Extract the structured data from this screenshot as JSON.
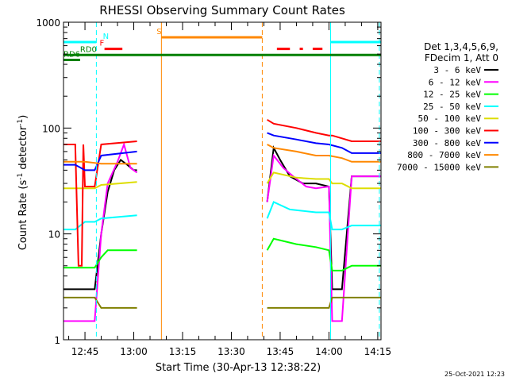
{
  "chart_data": {
    "type": "line",
    "title": "RHESSI Observing Summary Count Rates",
    "xlabel": "Start Time (30-Apr-13 12:38:22)",
    "ylabel_parts": {
      "base": "Count Rate (s",
      "sup": "-1",
      "tail": " detector",
      "sup2": "-1",
      "close": ")"
    },
    "yscale": "log",
    "ylim": [
      1,
      1000
    ],
    "xlim_minutes": [
      38.4,
      136.0
    ],
    "y_ticks": [
      {
        "value": 1,
        "label": "1"
      },
      {
        "value": 10,
        "label": "10"
      },
      {
        "value": 100,
        "label": "100"
      },
      {
        "value": 1000,
        "label": "1000"
      }
    ],
    "x_ticks": [
      {
        "minute": 45,
        "label": "12:45"
      },
      {
        "minute": 60,
        "label": "13:00"
      },
      {
        "minute": 75,
        "label": "13:15"
      },
      {
        "minute": 90,
        "label": "13:30"
      },
      {
        "minute": 105,
        "label": "13:45"
      },
      {
        "minute": 120,
        "label": "14:00"
      },
      {
        "minute": 135,
        "label": "14:15"
      }
    ],
    "legend_header": [
      "Det 1,3,4,5,6,9,",
      "FDecim 1, Att 0"
    ],
    "series": [
      {
        "name": "3 - 6 keV",
        "color": "#000000",
        "segments": [
          [
            [
              38.4,
              3
            ],
            [
              46,
              3
            ],
            [
              48,
              3
            ],
            [
              50,
              10
            ],
            [
              52,
              25
            ],
            [
              54,
              40
            ],
            [
              56,
              50
            ],
            [
              58,
              45
            ],
            [
              60,
              40
            ],
            [
              61,
              40
            ]
          ],
          [
            [
              101,
              20
            ],
            [
              103,
              65
            ],
            [
              105,
              50
            ],
            [
              108,
              35
            ],
            [
              112,
              30
            ],
            [
              116,
              30
            ],
            [
              120,
              28
            ],
            [
              121,
              3
            ],
            [
              124,
              3
            ],
            [
              127,
              35
            ],
            [
              136,
              35
            ]
          ]
        ]
      },
      {
        "name": "6 - 12 keV",
        "color": "#ff00ff",
        "segments": [
          [
            [
              38.4,
              1.5
            ],
            [
              48,
              1.5
            ],
            [
              50,
              10
            ],
            [
              52,
              30
            ],
            [
              55,
              48
            ],
            [
              57,
              70
            ],
            [
              59,
              42
            ],
            [
              61,
              38
            ]
          ],
          [
            [
              101,
              20
            ],
            [
              103,
              55
            ],
            [
              106,
              42
            ],
            [
              109,
              35
            ],
            [
              113,
              28
            ],
            [
              116,
              27
            ],
            [
              120,
              28
            ],
            [
              121,
              1.5
            ],
            [
              124,
              1.5
            ],
            [
              127,
              35
            ],
            [
              136,
              35
            ]
          ]
        ]
      },
      {
        "name": "12 - 25 keV",
        "color": "#00ff00",
        "segments": [
          [
            [
              38.4,
              4.8
            ],
            [
              48,
              4.8
            ],
            [
              50,
              6
            ],
            [
              52,
              7
            ],
            [
              61,
              7
            ]
          ],
          [
            [
              101,
              7
            ],
            [
              103,
              9
            ],
            [
              110,
              8
            ],
            [
              116,
              7.5
            ],
            [
              120,
              7
            ],
            [
              121,
              4.5
            ],
            [
              124,
              4.5
            ],
            [
              127,
              5
            ],
            [
              136,
              5
            ]
          ]
        ]
      },
      {
        "name": "25 - 50 keV",
        "color": "#00ffff",
        "segments": [
          [
            [
              38.4,
              11
            ],
            [
              42,
              11
            ],
            [
              45,
              13
            ],
            [
              48,
              13
            ],
            [
              50,
              14
            ],
            [
              61,
              15
            ]
          ],
          [
            [
              101,
              14
            ],
            [
              103,
              20
            ],
            [
              108,
              17
            ],
            [
              116,
              16
            ],
            [
              120,
              16
            ],
            [
              121,
              11
            ],
            [
              124,
              11
            ],
            [
              127,
              12
            ],
            [
              136,
              12
            ]
          ]
        ]
      },
      {
        "name": "50 - 100 keV",
        "color": "#dddd00",
        "segments": [
          [
            [
              38.4,
              27
            ],
            [
              42,
              27
            ],
            [
              45,
              27
            ],
            [
              48,
              27
            ],
            [
              50,
              29
            ],
            [
              61,
              31
            ]
          ],
          [
            [
              101,
              30
            ],
            [
              103,
              38
            ],
            [
              110,
              34
            ],
            [
              116,
              33
            ],
            [
              120,
              33
            ],
            [
              121,
              30
            ],
            [
              124,
              30
            ],
            [
              127,
              27
            ],
            [
              136,
              27
            ]
          ]
        ]
      },
      {
        "name": "100 - 300 keV",
        "color": "#ff0000",
        "segments": [
          [
            [
              38.4,
              70
            ],
            [
              42,
              70
            ],
            [
              43,
              5
            ],
            [
              44,
              5
            ],
            [
              44.5,
              70
            ],
            [
              45,
              28
            ],
            [
              48,
              28
            ],
            [
              50,
              70
            ],
            [
              61,
              75
            ]
          ],
          [
            [
              101,
              120
            ],
            [
              103,
              110
            ],
            [
              110,
              100
            ],
            [
              116,
              90
            ],
            [
              120,
              85
            ],
            [
              121,
              85
            ],
            [
              124,
              80
            ],
            [
              127,
              75
            ],
            [
              136,
              75
            ]
          ]
        ]
      },
      {
        "name": "300 - 800 keV",
        "color": "#0000ff",
        "segments": [
          [
            [
              38.4,
              45
            ],
            [
              42,
              45
            ],
            [
              45,
              40
            ],
            [
              48,
              40
            ],
            [
              50,
              55
            ],
            [
              61,
              60
            ]
          ],
          [
            [
              101,
              90
            ],
            [
              103,
              85
            ],
            [
              110,
              78
            ],
            [
              116,
              72
            ],
            [
              120,
              70
            ],
            [
              124,
              65
            ],
            [
              127,
              58
            ],
            [
              136,
              58
            ]
          ]
        ]
      },
      {
        "name": "800 - 7000 keV",
        "color": "#ff8800",
        "segments": [
          [
            [
              38.4,
              48
            ],
            [
              45,
              48
            ],
            [
              50,
              46
            ],
            [
              61,
              46
            ]
          ],
          [
            [
              101,
              70
            ],
            [
              103,
              65
            ],
            [
              110,
              60
            ],
            [
              116,
              55
            ],
            [
              120,
              55
            ],
            [
              124,
              52
            ],
            [
              127,
              48
            ],
            [
              136,
              48
            ]
          ]
        ]
      },
      {
        "name": "7000 - 15000 keV",
        "color": "#808000",
        "segments": [
          [
            [
              38.4,
              2.5
            ],
            [
              48,
              2.5
            ],
            [
              50,
              2
            ],
            [
              61,
              2
            ]
          ],
          [
            [
              101,
              2
            ],
            [
              116,
              2
            ],
            [
              120,
              2
            ],
            [
              121,
              2.5
            ],
            [
              124,
              2.5
            ],
            [
              127,
              2.5
            ],
            [
              136,
              2.5
            ]
          ]
        ]
      }
    ],
    "flags": [
      {
        "label": "",
        "color": "#00ffff",
        "y": 650,
        "x": [
          38.4,
          48.5
        ]
      },
      {
        "label": "N",
        "color": "#00ffff",
        "y": 650,
        "x": [
          48.5,
          48.5
        ],
        "label_minute": 50.5
      },
      {
        "label": "F",
        "color": "#ff0000",
        "y": 560,
        "x": [
          51,
          56.5
        ],
        "label_minute": 49.5
      },
      {
        "label": "S",
        "color": "#ff8800",
        "y": 720,
        "x": [
          68.5,
          99.5
        ],
        "label_minute": 67
      },
      {
        "label": "",
        "color": "#ff0000",
        "y": 560,
        "x": [
          104,
          108
        ]
      },
      {
        "label": "",
        "color": "#ff0000",
        "y": 560,
        "x": [
          111,
          112
        ]
      },
      {
        "label": "",
        "color": "#ff0000",
        "y": 560,
        "x": [
          115,
          118
        ]
      },
      {
        "label": "RD0",
        "color": "#008000",
        "y": 490,
        "x": [
          38.4,
          136
        ],
        "label_minute": 43.5
      },
      {
        "label": "RD6",
        "color": "#008000",
        "y": 440,
        "x": [
          38.4,
          43.5
        ],
        "label_minute": 38.4
      },
      {
        "label": "",
        "color": "#00ffff",
        "y": 650,
        "x": [
          120.5,
          136
        ]
      }
    ],
    "vlines": [
      {
        "minute": 48.5,
        "color": "#00ffff",
        "style": "dashed"
      },
      {
        "minute": 68.5,
        "color": "#ff8800",
        "style": "solid"
      },
      {
        "minute": 99.5,
        "color": "#ff8800",
        "style": "dashed"
      },
      {
        "minute": 120.5,
        "color": "#00ffff",
        "style": "solid"
      },
      {
        "minute": 135.5,
        "color": "#00ffff",
        "style": "dashed"
      },
      {
        "minute": 38.4,
        "color": "#00ffff",
        "style": "solid"
      }
    ]
  },
  "footer": {
    "timestamp": "25-Oct-2021 12:23"
  }
}
